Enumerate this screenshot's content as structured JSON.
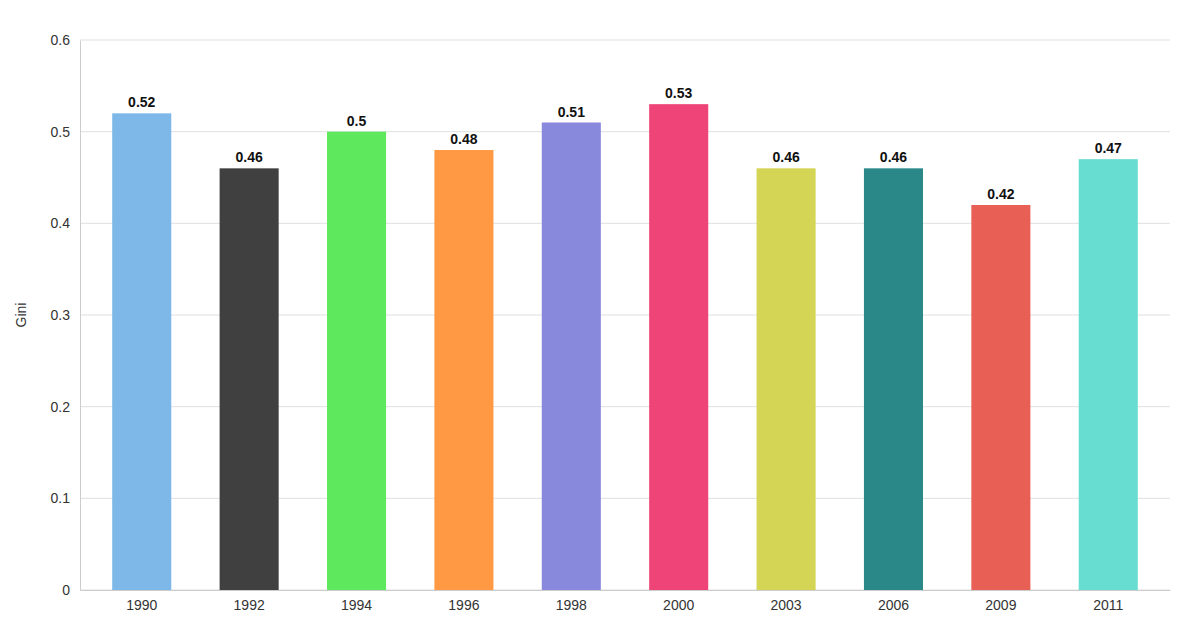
{
  "chart_data": {
    "type": "bar",
    "categories": [
      "1990",
      "1992",
      "1994",
      "1996",
      "1998",
      "2000",
      "2003",
      "2006",
      "2009",
      "2011"
    ],
    "values": [
      0.52,
      0.46,
      0.5,
      0.48,
      0.51,
      0.53,
      0.46,
      0.46,
      0.42,
      0.47
    ],
    "colors": [
      "#7db8e8",
      "#404040",
      "#5de85d",
      "#ff9944",
      "#8888dd",
      "#ee4477",
      "#d4d455",
      "#2a8888",
      "#e86055",
      "#66ddd0"
    ],
    "ylabel": "Gini",
    "ylim": [
      0,
      0.6
    ],
    "yticks": [
      0,
      0.1,
      0.2,
      0.3,
      0.4,
      0.5,
      0.6
    ],
    "grid": true,
    "data_labels": true
  }
}
